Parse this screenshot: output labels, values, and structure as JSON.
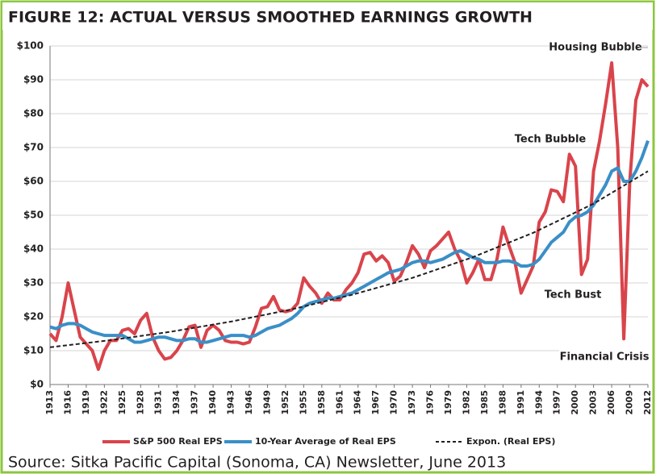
{
  "chart_data": {
    "type": "line",
    "title": "FIGURE 12: ACTUAL VERSUS SMOOTHED EARNINGS GROWTH",
    "source": "Source: Sitka Pacific Capital (Sonoma, CA) Newsletter, June 2013",
    "x": [
      1913,
      1914,
      1915,
      1916,
      1917,
      1918,
      1919,
      1920,
      1921,
      1922,
      1923,
      1924,
      1925,
      1926,
      1927,
      1928,
      1929,
      1930,
      1931,
      1932,
      1933,
      1934,
      1935,
      1936,
      1937,
      1938,
      1939,
      1940,
      1941,
      1942,
      1943,
      1944,
      1945,
      1946,
      1947,
      1948,
      1949,
      1950,
      1951,
      1952,
      1953,
      1954,
      1955,
      1956,
      1957,
      1958,
      1959,
      1960,
      1961,
      1962,
      1963,
      1964,
      1965,
      1966,
      1967,
      1968,
      1969,
      1970,
      1971,
      1972,
      1973,
      1974,
      1975,
      1976,
      1977,
      1978,
      1979,
      1980,
      1981,
      1982,
      1983,
      1984,
      1985,
      1986,
      1987,
      1988,
      1989,
      1990,
      1991,
      1992,
      1993,
      1994,
      1995,
      1996,
      1997,
      1998,
      1999,
      2000,
      2001,
      2002,
      2003,
      2004,
      2005,
      2006,
      2007,
      2008,
      2009,
      2010,
      2011,
      2012
    ],
    "xlim": [
      1913,
      2012
    ],
    "xticks": [
      1913,
      1916,
      1919,
      1922,
      1925,
      1928,
      1931,
      1934,
      1937,
      1940,
      1943,
      1946,
      1949,
      1952,
      1955,
      1958,
      1961,
      1964,
      1967,
      1970,
      1973,
      1976,
      1979,
      1982,
      1985,
      1988,
      1991,
      1994,
      1997,
      2000,
      2003,
      2006,
      2009,
      2012
    ],
    "ylim": [
      0,
      100
    ],
    "yticks": [
      {
        "value": 0,
        "label": "$0"
      },
      {
        "value": 10,
        "label": "$10"
      },
      {
        "value": 20,
        "label": "$20"
      },
      {
        "value": 30,
        "label": "$30"
      },
      {
        "value": 40,
        "label": "$40"
      },
      {
        "value": 50,
        "label": "$50"
      },
      {
        "value": 60,
        "label": "$60"
      },
      {
        "value": 70,
        "label": "$70"
      },
      {
        "value": 80,
        "label": "$80"
      },
      {
        "value": 90,
        "label": "$90"
      },
      {
        "value": 100,
        "label": "$100"
      }
    ],
    "grid": true,
    "legend": "bottom",
    "series": [
      {
        "name": "S&P 500 Real EPS",
        "color": "#d9444b",
        "values": [
          15,
          13,
          20,
          30,
          22,
          14,
          12,
          10,
          4.5,
          10,
          13,
          13,
          16,
          16.5,
          15,
          19,
          21,
          14,
          10,
          7.5,
          8,
          10,
          13,
          17,
          17.5,
          11,
          16,
          17.5,
          16,
          13,
          12.5,
          12.5,
          12,
          12.5,
          17,
          22.5,
          23,
          26,
          22,
          21.5,
          22,
          24,
          31.5,
          29,
          27,
          24,
          27,
          25,
          25,
          28,
          30,
          33,
          38.5,
          39,
          36.5,
          38,
          36,
          30.5,
          32,
          36,
          41,
          38.5,
          34.5,
          39.5,
          41,
          43,
          45,
          40,
          36.5,
          30,
          33,
          37,
          31,
          31,
          37,
          46.5,
          41,
          36,
          27,
          31,
          35,
          48,
          51,
          57.5,
          57,
          54,
          68,
          64.5,
          32.5,
          37,
          63,
          72,
          83,
          95,
          70,
          13.5,
          60,
          84,
          90,
          88
        ]
      },
      {
        "name": "10-Year Average of Real EPS",
        "color": "#3a8fc7",
        "values": [
          17,
          16.5,
          17.5,
          18,
          18,
          17.5,
          16.5,
          15.5,
          15,
          14.5,
          14.5,
          14.5,
          14.5,
          13.5,
          12.5,
          12.5,
          13,
          13.5,
          14,
          14,
          13.5,
          13,
          13,
          13.5,
          13.5,
          12.5,
          12.5,
          13,
          13.5,
          14,
          14.5,
          14.5,
          14.5,
          14,
          14.5,
          15.5,
          16.5,
          17,
          17.5,
          18.5,
          19.5,
          21,
          23,
          24,
          24.5,
          25,
          25.5,
          25.5,
          26,
          26.5,
          27,
          28,
          29,
          30,
          31,
          32,
          33,
          33.5,
          34,
          35,
          36,
          36.5,
          36.5,
          36,
          36.5,
          37,
          38,
          39,
          39.5,
          38.5,
          37.5,
          37,
          36,
          36,
          36,
          36.5,
          36.5,
          36,
          35,
          35,
          35.5,
          37,
          39.5,
          42,
          43.5,
          45,
          48,
          49.5,
          50,
          51,
          53,
          56,
          59,
          63,
          64,
          60,
          60,
          63,
          67,
          72
        ]
      },
      {
        "name": "Expon. (Real EPS)",
        "color": "#231f20",
        "dashed": true,
        "x": [
          1913,
          1923,
          1933,
          1943,
          1953,
          1963,
          1973,
          1983,
          1993,
          2003,
          2012
        ],
        "values": [
          11,
          13.1,
          15.6,
          18.6,
          22.2,
          26.5,
          31.5,
          37.6,
          44.8,
          53.4,
          63
        ]
      }
    ],
    "annotations": [
      "Housing Bubble",
      "Tech Bubble",
      "Tech Bust",
      "Financial Crisis"
    ]
  }
}
